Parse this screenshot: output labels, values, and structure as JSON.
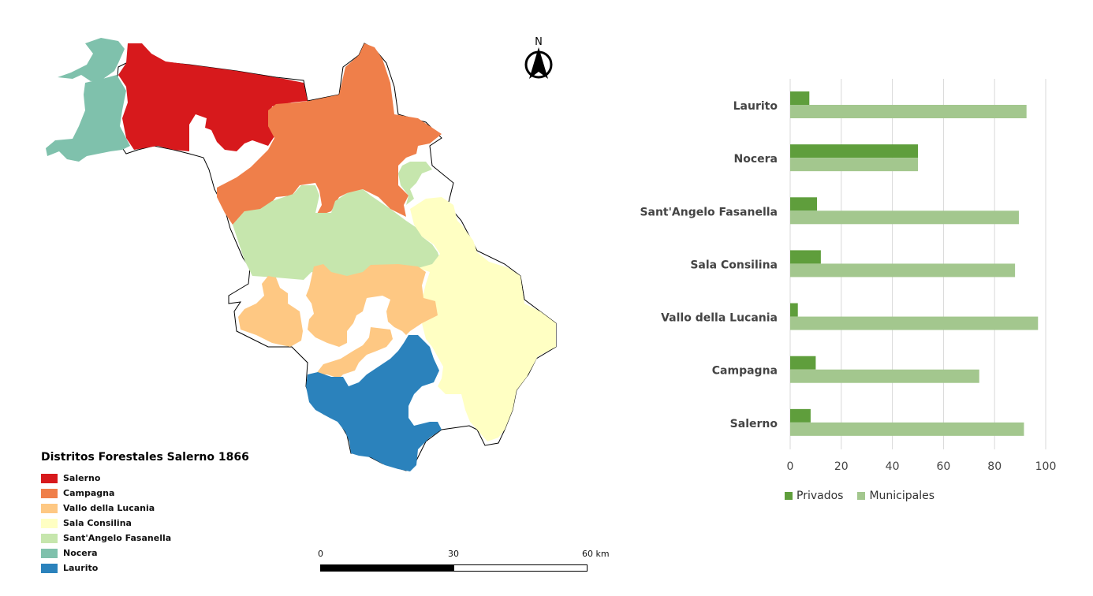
{
  "map": {
    "north_label": "N",
    "legend": {
      "title": "Distritos Forestales Salerno 1866",
      "items": [
        {
          "label": "Salerno",
          "color": "#d7191c"
        },
        {
          "label": "Campagna",
          "color": "#ef7f4a"
        },
        {
          "label": "Vallo della Lucania",
          "color": "#fec883"
        },
        {
          "label": "Sala Consilina",
          "color": "#ffffc3"
        },
        {
          "label": "Sant'Angelo Fasanella",
          "color": "#c6e6ad"
        },
        {
          "label": "Nocera",
          "color": "#7fc1ac"
        },
        {
          "label": "Laurito",
          "color": "#2b82bc"
        }
      ]
    },
    "scalebar": {
      "label_0": "0",
      "label_mid": "30",
      "label_end": "60 km"
    }
  },
  "chart_data": {
    "type": "bar",
    "orientation": "horizontal",
    "categories": [
      "Laurito",
      "Nocera",
      "Sant'Angelo Fasanella",
      "Sala Consilina",
      "Vallo della Lucania",
      "Campagna",
      "Salerno"
    ],
    "series": [
      {
        "name": "Privados",
        "color": "#5f9e3c",
        "values": [
          7.5,
          50,
          10.5,
          12,
          3,
          10,
          8
        ]
      },
      {
        "name": "Municipales",
        "color": "#a3c78e",
        "values": [
          92.5,
          50,
          89.5,
          88,
          97,
          74,
          91.5
        ]
      }
    ],
    "xlim": [
      0,
      100
    ],
    "xticks": [
      "0",
      "20",
      "40",
      "60",
      "80",
      "100"
    ],
    "grid": true,
    "legend_position": "bottom"
  }
}
